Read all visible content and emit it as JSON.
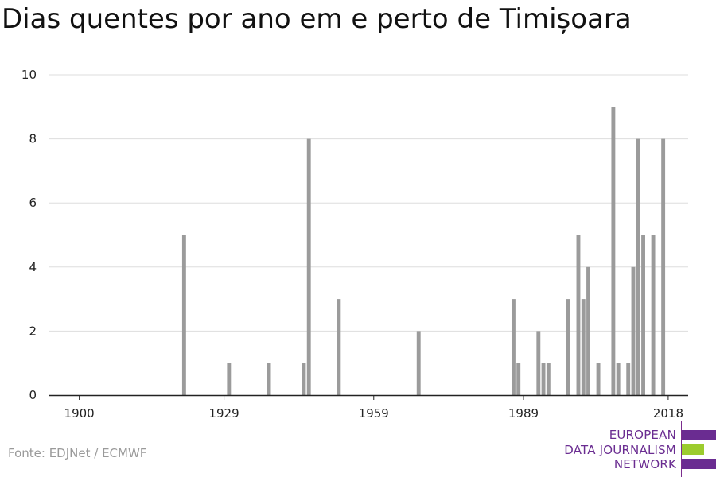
{
  "title": "Dias quentes por ano em e perto de Timișoara",
  "source": "Fonte: EDJNet / ECMWF",
  "logo": {
    "lines": [
      "EUROPEAN",
      "DATA JOURNALISM",
      "NETWORK"
    ],
    "colors": {
      "text": "#6a2c91",
      "purple": "#6a2c91",
      "green": "#9ccc2e"
    }
  },
  "chart_data": {
    "type": "bar",
    "title": "Dias quentes por ano em e perto de Timișoara",
    "xlabel": "",
    "ylabel": "",
    "xlim": [
      1894,
      2022
    ],
    "ylim": [
      0,
      10
    ],
    "x_ticks": [
      1900,
      1929,
      1959,
      1989,
      2018
    ],
    "y_ticks": [
      0,
      2,
      4,
      6,
      8,
      10
    ],
    "grid": true,
    "bar_color": "#9b9b9b",
    "x": [
      1921,
      1930,
      1938,
      1945,
      1946,
      1952,
      1968,
      1987,
      1988,
      1992,
      1993,
      1994,
      1998,
      2000,
      2001,
      2002,
      2004,
      2007,
      2008,
      2010,
      2011,
      2012,
      2013,
      2015,
      2017
    ],
    "values": [
      5,
      1,
      1,
      1,
      8,
      3,
      2,
      3,
      1,
      2,
      1,
      1,
      3,
      5,
      3,
      4,
      1,
      9,
      1,
      1,
      4,
      8,
      5,
      5,
      8
    ]
  }
}
